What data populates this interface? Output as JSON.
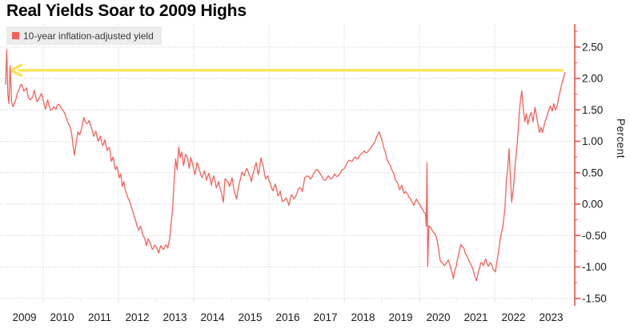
{
  "title": "Real Yields Soar to 2009 Highs",
  "legend": {
    "label": "10-year inflation-adjusted yield"
  },
  "colors": {
    "line": "#f4615c",
    "axis": "#ee4f46",
    "grid": "#cbcbcb",
    "arrow": "#ffe14a",
    "legend_bg": "#ececec",
    "text": "#1a1a1a"
  },
  "y_axis": {
    "unit_label": "Percent",
    "tick_labels": [
      "2.50",
      "2.00",
      "1.50",
      "1.00",
      "0.50",
      "0.00",
      "-0.50",
      "-1.00",
      "-1.50"
    ],
    "tick_values": [
      2.5,
      2.0,
      1.5,
      1.0,
      0.5,
      0.0,
      -0.5,
      -1.0,
      -1.5
    ],
    "minor_step": 0.25
  },
  "x_axis": {
    "year_labels": [
      "2009",
      "2010",
      "2011",
      "2012",
      "2013",
      "2014",
      "2015",
      "2016",
      "2017",
      "2018",
      "2019",
      "2020",
      "2021",
      "2022",
      "2023"
    ],
    "gridline_years": [
      2010,
      2012,
      2014,
      2016,
      2018,
      2020,
      2022
    ]
  },
  "annotation_arrow": {
    "level": 2.13,
    "from_t": 2023.82,
    "tip_t": 2009.5,
    "direction": "left"
  },
  "chart_data": {
    "type": "line",
    "title": "Real Yields Soar to 2009 Highs",
    "xlabel": "",
    "ylabel": "Percent",
    "xlim": [
      2009.0,
      2024.0
    ],
    "ylim": [
      -1.75,
      2.85
    ],
    "grid": "dotted",
    "legend_position": "top-left",
    "series": [
      {
        "name": "10-year inflation-adjusted yield",
        "points": [
          [
            2009.0,
            1.9
          ],
          [
            2009.03,
            2.45
          ],
          [
            2009.06,
            1.75
          ],
          [
            2009.09,
            1.6
          ],
          [
            2009.12,
            2.2
          ],
          [
            2009.16,
            1.62
          ],
          [
            2009.2,
            1.55
          ],
          [
            2009.27,
            1.66
          ],
          [
            2009.32,
            1.78
          ],
          [
            2009.42,
            1.91
          ],
          [
            2009.48,
            1.8
          ],
          [
            2009.56,
            1.85
          ],
          [
            2009.6,
            1.7
          ],
          [
            2009.65,
            1.66
          ],
          [
            2009.72,
            1.7
          ],
          [
            2009.76,
            1.81
          ],
          [
            2009.83,
            1.63
          ],
          [
            2009.87,
            1.66
          ],
          [
            2009.95,
            1.76
          ],
          [
            2010.02,
            1.6
          ],
          [
            2010.06,
            1.51
          ],
          [
            2010.12,
            1.66
          ],
          [
            2010.2,
            1.49
          ],
          [
            2010.28,
            1.55
          ],
          [
            2010.34,
            1.51
          ],
          [
            2010.4,
            1.59
          ],
          [
            2010.46,
            1.55
          ],
          [
            2010.49,
            1.51
          ],
          [
            2010.55,
            1.47
          ],
          [
            2010.62,
            1.36
          ],
          [
            2010.7,
            1.25
          ],
          [
            2010.76,
            1.1
          ],
          [
            2010.8,
            0.9
          ],
          [
            2010.83,
            0.78
          ],
          [
            2010.87,
            0.95
          ],
          [
            2010.92,
            1.15
          ],
          [
            2010.97,
            1.1
          ],
          [
            2011.02,
            1.2
          ],
          [
            2011.08,
            1.38
          ],
          [
            2011.15,
            1.28
          ],
          [
            2011.22,
            1.33
          ],
          [
            2011.28,
            1.22
          ],
          [
            2011.34,
            1.08
          ],
          [
            2011.4,
            1.16
          ],
          [
            2011.46,
            1.0
          ],
          [
            2011.52,
            1.08
          ],
          [
            2011.58,
            0.93
          ],
          [
            2011.64,
            1.02
          ],
          [
            2011.7,
            0.85
          ],
          [
            2011.76,
            0.9
          ],
          [
            2011.81,
            0.68
          ],
          [
            2011.86,
            0.75
          ],
          [
            2011.92,
            0.55
          ],
          [
            2011.96,
            0.6
          ],
          [
            2012.02,
            0.42
          ],
          [
            2012.06,
            0.48
          ],
          [
            2012.1,
            0.28
          ],
          [
            2012.14,
            0.36
          ],
          [
            2012.18,
            0.22
          ],
          [
            2012.25,
            0.1
          ],
          [
            2012.31,
            0.02
          ],
          [
            2012.36,
            -0.08
          ],
          [
            2012.42,
            -0.2
          ],
          [
            2012.48,
            -0.32
          ],
          [
            2012.54,
            -0.42
          ],
          [
            2012.58,
            -0.35
          ],
          [
            2012.64,
            -0.48
          ],
          [
            2012.7,
            -0.55
          ],
          [
            2012.74,
            -0.66
          ],
          [
            2012.79,
            -0.55
          ],
          [
            2012.84,
            -0.62
          ],
          [
            2012.9,
            -0.72
          ],
          [
            2012.96,
            -0.65
          ],
          [
            2013.02,
            -0.7
          ],
          [
            2013.07,
            -0.78
          ],
          [
            2013.13,
            -0.66
          ],
          [
            2013.19,
            -0.72
          ],
          [
            2013.25,
            -0.65
          ],
          [
            2013.31,
            -0.7
          ],
          [
            2013.36,
            -0.55
          ],
          [
            2013.4,
            -0.3
          ],
          [
            2013.44,
            -0.06
          ],
          [
            2013.48,
            0.4
          ],
          [
            2013.52,
            0.72
          ],
          [
            2013.56,
            0.55
          ],
          [
            2013.6,
            0.91
          ],
          [
            2013.64,
            0.74
          ],
          [
            2013.68,
            0.83
          ],
          [
            2013.73,
            0.61
          ],
          [
            2013.78,
            0.79
          ],
          [
            2013.84,
            0.72
          ],
          [
            2013.88,
            0.57
          ],
          [
            2013.92,
            0.74
          ],
          [
            2013.97,
            0.64
          ],
          [
            2014.03,
            0.47
          ],
          [
            2014.09,
            0.66
          ],
          [
            2014.16,
            0.53
          ],
          [
            2014.22,
            0.42
          ],
          [
            2014.28,
            0.53
          ],
          [
            2014.34,
            0.38
          ],
          [
            2014.4,
            0.49
          ],
          [
            2014.47,
            0.3
          ],
          [
            2014.53,
            0.45
          ],
          [
            2014.6,
            0.26
          ],
          [
            2014.66,
            0.36
          ],
          [
            2014.73,
            0.19
          ],
          [
            2014.79,
            0.03
          ],
          [
            2014.83,
            0.4
          ],
          [
            2014.89,
            0.36
          ],
          [
            2014.95,
            0.28
          ],
          [
            2015.02,
            0.42
          ],
          [
            2015.08,
            0.19
          ],
          [
            2015.14,
            0.08
          ],
          [
            2015.21,
            0.34
          ],
          [
            2015.28,
            0.51
          ],
          [
            2015.34,
            0.45
          ],
          [
            2015.41,
            0.57
          ],
          [
            2015.47,
            0.47
          ],
          [
            2015.53,
            0.36
          ],
          [
            2015.6,
            0.53
          ],
          [
            2015.66,
            0.66
          ],
          [
            2015.72,
            0.47
          ],
          [
            2015.79,
            0.74
          ],
          [
            2015.85,
            0.6
          ],
          [
            2015.91,
            0.4
          ],
          [
            2015.97,
            0.45
          ],
          [
            2016.04,
            0.32
          ],
          [
            2016.11,
            0.21
          ],
          [
            2016.17,
            0.32
          ],
          [
            2016.24,
            0.13
          ],
          [
            2016.3,
            0.21
          ],
          [
            2016.36,
            0.04
          ],
          [
            2016.45,
            0.1
          ],
          [
            2016.53,
            -0.02
          ],
          [
            2016.6,
            0.15
          ],
          [
            2016.66,
            0.08
          ],
          [
            2016.74,
            0.17
          ],
          [
            2016.81,
            0.26
          ],
          [
            2016.89,
            0.2
          ],
          [
            2016.95,
            0.42
          ],
          [
            2017.02,
            0.45
          ],
          [
            2017.1,
            0.4
          ],
          [
            2017.18,
            0.48
          ],
          [
            2017.26,
            0.55
          ],
          [
            2017.34,
            0.5
          ],
          [
            2017.42,
            0.42
          ],
          [
            2017.5,
            0.38
          ],
          [
            2017.58,
            0.45
          ],
          [
            2017.66,
            0.4
          ],
          [
            2017.74,
            0.48
          ],
          [
            2017.82,
            0.44
          ],
          [
            2017.9,
            0.5
          ],
          [
            2017.97,
            0.55
          ],
          [
            2018.05,
            0.62
          ],
          [
            2018.13,
            0.7
          ],
          [
            2018.21,
            0.68
          ],
          [
            2018.29,
            0.75
          ],
          [
            2018.37,
            0.72
          ],
          [
            2018.45,
            0.8
          ],
          [
            2018.53,
            0.85
          ],
          [
            2018.61,
            0.82
          ],
          [
            2018.69,
            0.88
          ],
          [
            2018.77,
            0.95
          ],
          [
            2018.85,
            1.05
          ],
          [
            2018.93,
            1.15
          ],
          [
            2018.97,
            1.08
          ],
          [
            2019.02,
            0.98
          ],
          [
            2019.08,
            0.85
          ],
          [
            2019.14,
            0.7
          ],
          [
            2019.2,
            0.64
          ],
          [
            2019.26,
            0.55
          ],
          [
            2019.32,
            0.49
          ],
          [
            2019.36,
            0.38
          ],
          [
            2019.42,
            0.34
          ],
          [
            2019.47,
            0.23
          ],
          [
            2019.53,
            0.3
          ],
          [
            2019.59,
            0.17
          ],
          [
            2019.65,
            0.19
          ],
          [
            2019.72,
            0.11
          ],
          [
            2019.78,
            0.05
          ],
          [
            2019.85,
            -0.02
          ],
          [
            2019.92,
            0.08
          ],
          [
            2019.98,
            0.02
          ],
          [
            2020.05,
            -0.06
          ],
          [
            2020.12,
            -0.13
          ],
          [
            2020.16,
            -0.15
          ],
          [
            2020.18,
            -0.35
          ],
          [
            2020.2,
            0.66
          ],
          [
            2020.22,
            -0.99
          ],
          [
            2020.25,
            -0.34
          ],
          [
            2020.31,
            -0.38
          ],
          [
            2020.37,
            -0.45
          ],
          [
            2020.44,
            -0.51
          ],
          [
            2020.5,
            -0.68
          ],
          [
            2020.55,
            -0.89
          ],
          [
            2020.61,
            -0.93
          ],
          [
            2020.67,
            -0.98
          ],
          [
            2020.72,
            -0.93
          ],
          [
            2020.77,
            -0.89
          ],
          [
            2020.82,
            -0.99
          ],
          [
            2020.87,
            -1.1
          ],
          [
            2020.9,
            -1.19
          ],
          [
            2020.94,
            -1.05
          ],
          [
            2020.98,
            -0.98
          ],
          [
            2021.04,
            -0.8
          ],
          [
            2021.1,
            -0.64
          ],
          [
            2021.16,
            -0.68
          ],
          [
            2021.22,
            -0.79
          ],
          [
            2021.28,
            -0.85
          ],
          [
            2021.34,
            -0.93
          ],
          [
            2021.41,
            -1.02
          ],
          [
            2021.47,
            -1.15
          ],
          [
            2021.52,
            -1.22
          ],
          [
            2021.57,
            -1.06
          ],
          [
            2021.63,
            -0.93
          ],
          [
            2021.7,
            -0.98
          ],
          [
            2021.76,
            -0.87
          ],
          [
            2021.83,
            -0.99
          ],
          [
            2021.89,
            -0.93
          ],
          [
            2021.96,
            -1.04
          ],
          [
            2022.02,
            -1.08
          ],
          [
            2022.05,
            -0.95
          ],
          [
            2022.1,
            -0.76
          ],
          [
            2022.16,
            -0.51
          ],
          [
            2022.22,
            -0.34
          ],
          [
            2022.27,
            -0.08
          ],
          [
            2022.31,
            0.38
          ],
          [
            2022.35,
            0.6
          ],
          [
            2022.38,
            0.88
          ],
          [
            2022.41,
            0.5
          ],
          [
            2022.45,
            0.03
          ],
          [
            2022.5,
            0.28
          ],
          [
            2022.55,
            0.67
          ],
          [
            2022.6,
            0.97
          ],
          [
            2022.65,
            1.44
          ],
          [
            2022.68,
            1.63
          ],
          [
            2022.72,
            1.8
          ],
          [
            2022.76,
            1.52
          ],
          [
            2022.8,
            1.31
          ],
          [
            2022.84,
            1.44
          ],
          [
            2022.88,
            1.27
          ],
          [
            2022.93,
            1.4
          ],
          [
            2022.97,
            1.46
          ],
          [
            2023.02,
            1.31
          ],
          [
            2023.07,
            1.54
          ],
          [
            2023.11,
            1.4
          ],
          [
            2023.15,
            1.27
          ],
          [
            2023.19,
            1.14
          ],
          [
            2023.23,
            1.22
          ],
          [
            2023.27,
            1.14
          ],
          [
            2023.32,
            1.27
          ],
          [
            2023.36,
            1.35
          ],
          [
            2023.4,
            1.42
          ],
          [
            2023.44,
            1.5
          ],
          [
            2023.48,
            1.56
          ],
          [
            2023.53,
            1.48
          ],
          [
            2023.57,
            1.6
          ],
          [
            2023.61,
            1.5
          ],
          [
            2023.65,
            1.54
          ],
          [
            2023.7,
            1.69
          ],
          [
            2023.74,
            1.8
          ],
          [
            2023.78,
            1.91
          ],
          [
            2023.82,
            1.99
          ],
          [
            2023.85,
            2.06
          ],
          [
            2023.87,
            2.1
          ]
        ]
      }
    ]
  }
}
